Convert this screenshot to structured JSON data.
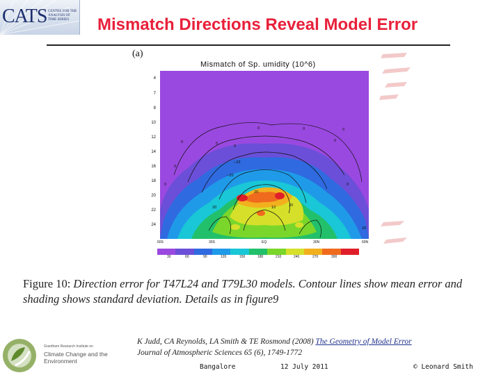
{
  "header": {
    "logo_big": "CATS",
    "logo_sub": "CENTRE FOR THE ANALYSIS OF TIME SERIES",
    "title": "Mismatch Directions Reveal Model Error"
  },
  "figure": {
    "panel_label": "(a)",
    "plot_title": "Mismatch of Sp.    umidity (10^6)",
    "y_ticks": [
      "4",
      "7",
      "8",
      "10",
      "12",
      "14",
      "16",
      "18",
      "20",
      "22",
      "24"
    ],
    "x_ticks": [
      "60S",
      "30S",
      "EQ",
      "30N",
      "60N"
    ],
    "colorbar": {
      "labels": [
        "30",
        "60",
        "90",
        "120",
        "150",
        "180",
        "210",
        "240",
        "270",
        "300"
      ],
      "colors": [
        "#9a49e0",
        "#6b4fd8",
        "#2f6ae0",
        "#1f9ae8",
        "#19c7d6",
        "#22c06a",
        "#7ad62a",
        "#d6e02a",
        "#f2b01e",
        "#f06a1e",
        "#e01e2a"
      ]
    },
    "caption_fig": "Figure 10:",
    "caption_body": "Direction error for T47L24 and T79L30 models. Contour lines show mean error and shading shows standard deviation. Details as in figure9"
  },
  "citation": {
    "authors": "K Judd, CA Reynolds, LA Smith & TE Rosmond (2008)",
    "link_text": "The Geometry of Model Error",
    "journal": "Journal of Atmospheric Sciences 65 (6), 1749-1772"
  },
  "footer_logo": {
    "small": "Grantham Research Institute on",
    "big": "Climate Change and the Environment"
  },
  "footer": {
    "location": "Bangalore",
    "date": "12 July 2011",
    "author": "© Leonard Smith"
  }
}
